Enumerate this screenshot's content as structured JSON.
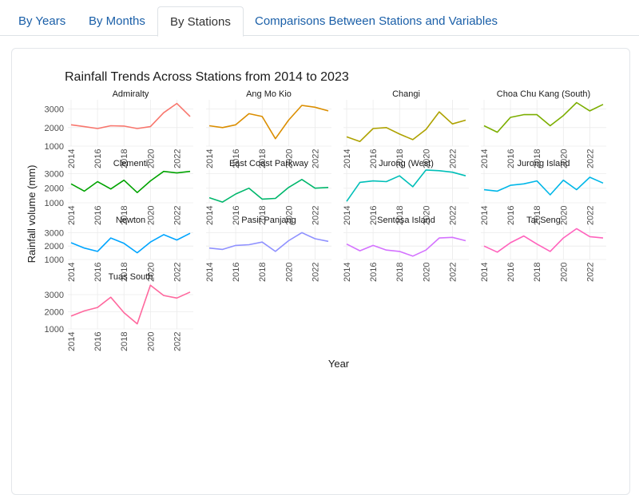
{
  "tabs": [
    {
      "label": "By Years",
      "active": false
    },
    {
      "label": "By Months",
      "active": false
    },
    {
      "label": "By Stations",
      "active": true
    },
    {
      "label": "Comparisons Between Stations and Variables",
      "active": false
    }
  ],
  "chart_data": {
    "type": "line",
    "title": "Rainfall Trends Across Stations from 2014 to 2023",
    "xlabel": "Year",
    "ylabel": "Rainfall volume (mm)",
    "x": [
      2014,
      2015,
      2016,
      2017,
      2018,
      2019,
      2020,
      2021,
      2022,
      2023
    ],
    "x_ticks": [
      2014,
      2016,
      2018,
      2020,
      2022
    ],
    "grid": true,
    "legend": "none",
    "facets": [
      {
        "name": "Admiralty",
        "color": "#F8766D",
        "ylim": [
          1000,
          3500
        ],
        "y_ticks": [
          1000,
          2000,
          3000
        ],
        "values": [
          2150,
          2050,
          1950,
          2100,
          2080,
          1950,
          2050,
          2800,
          3300,
          2600
        ]
      },
      {
        "name": "Ang Mo Kio",
        "color": "#DB8E00",
        "ylim": [
          1000,
          3500
        ],
        "y_ticks": [
          1000,
          2000,
          3000
        ],
        "values": [
          2100,
          2000,
          2150,
          2750,
          2600,
          1400,
          2400,
          3200,
          3100,
          2900
        ]
      },
      {
        "name": "Changi",
        "color": "#AEA200",
        "ylim": [
          1000,
          3500
        ],
        "y_ticks": [
          1000,
          2000,
          3000
        ],
        "values": [
          1500,
          1250,
          1950,
          2000,
          1650,
          1350,
          1900,
          2850,
          2200,
          2400
        ]
      },
      {
        "name": "Choa Chu Kang (South)",
        "color": "#7CAE00",
        "ylim": [
          1000,
          3500
        ],
        "y_ticks": [
          1000,
          2000,
          3000
        ],
        "values": [
          2100,
          1750,
          2550,
          2700,
          2700,
          2100,
          2650,
          3350,
          2900,
          3250
        ]
      },
      {
        "name": "Clementi",
        "color": "#00A300",
        "ylim": [
          1000,
          3300
        ],
        "y_ticks": [
          1000,
          2000,
          3000
        ],
        "values": [
          2300,
          1800,
          2450,
          1950,
          2550,
          1700,
          2500,
          3150,
          3050,
          3150
        ]
      },
      {
        "name": "East Coast Parkway",
        "color": "#00B76C",
        "ylim": [
          1000,
          3300
        ],
        "y_ticks": [
          1000,
          2000,
          3000
        ],
        "values": [
          1350,
          1050,
          1600,
          2000,
          1250,
          1300,
          2050,
          2600,
          2000,
          2050
        ]
      },
      {
        "name": "Jurong (West)",
        "color": "#00BFB8",
        "ylim": [
          1000,
          3300
        ],
        "y_ticks": [
          1000,
          2000,
          3000
        ],
        "values": [
          1100,
          2400,
          2500,
          2450,
          2850,
          2100,
          3250,
          3200,
          3100,
          2850
        ]
      },
      {
        "name": "Jurong Island",
        "color": "#00B7E8",
        "ylim": [
          1000,
          3300
        ],
        "y_ticks": [
          1000,
          2000,
          3000
        ],
        "values": [
          1900,
          1800,
          2200,
          2300,
          2500,
          1550,
          2550,
          1900,
          2750,
          2350
        ]
      },
      {
        "name": "Newton",
        "color": "#00A5FF",
        "ylim": [
          1000,
          3500
        ],
        "y_ticks": [
          1000,
          2000,
          3000
        ],
        "values": [
          2250,
          1850,
          1600,
          2600,
          2200,
          1500,
          2300,
          2850,
          2450,
          2950
        ]
      },
      {
        "name": "Pasir Panjang",
        "color": "#8F91FF",
        "ylim": [
          1000,
          3500
        ],
        "y_ticks": [
          1000,
          2000,
          3000
        ],
        "values": [
          1850,
          1750,
          2050,
          2100,
          2300,
          1600,
          2400,
          3000,
          2550,
          2350
        ]
      },
      {
        "name": "Sentosa Island",
        "color": "#D472FF",
        "ylim": [
          1000,
          3500
        ],
        "y_ticks": [
          1000,
          2000,
          3000
        ],
        "values": [
          2150,
          1650,
          2050,
          1700,
          1600,
          1250,
          1700,
          2600,
          2650,
          2400
        ]
      },
      {
        "name": "Tai Seng",
        "color": "#FF62BC",
        "ylim": [
          1000,
          3500
        ],
        "y_ticks": [
          1000,
          2000,
          3000
        ],
        "values": [
          2000,
          1550,
          2250,
          2750,
          2150,
          1600,
          2600,
          3300,
          2700,
          2600
        ]
      },
      {
        "name": "Tuas South",
        "color": "#FF689E",
        "ylim": [
          1000,
          3700
        ],
        "y_ticks": [
          1000,
          2000,
          3000
        ],
        "values": [
          1750,
          2050,
          2250,
          2850,
          1950,
          1300,
          3550,
          2950,
          2800,
          3150
        ]
      }
    ]
  }
}
